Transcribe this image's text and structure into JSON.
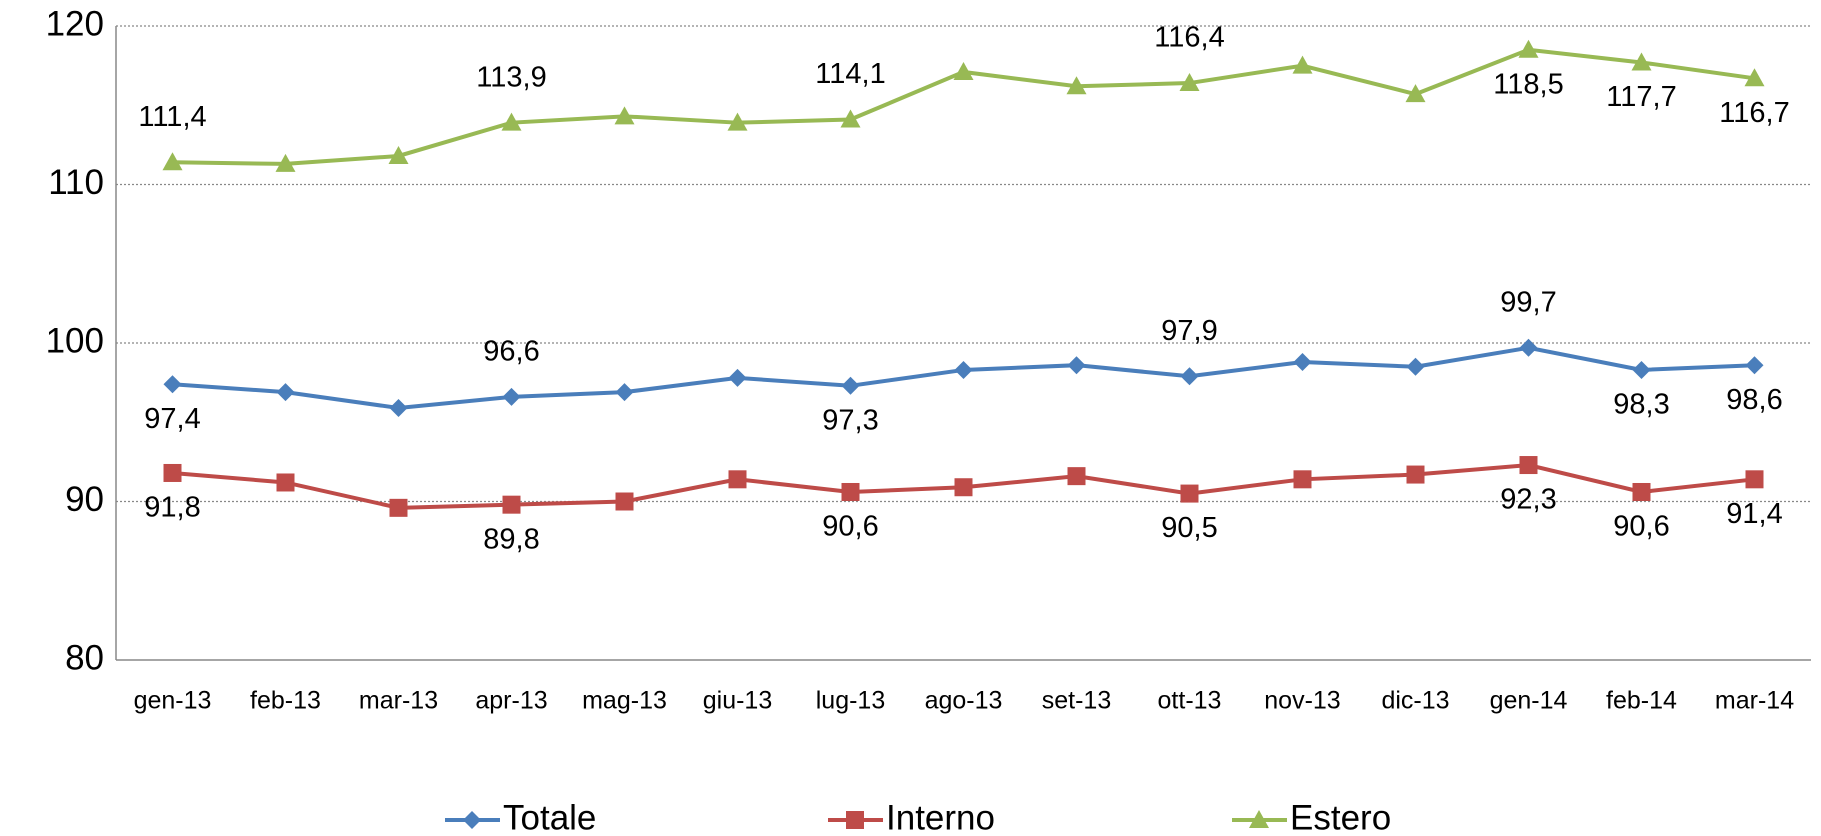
{
  "chart_data": {
    "type": "line",
    "categories": [
      "gen-13",
      "feb-13",
      "mar-13",
      "apr-13",
      "mag-13",
      "giu-13",
      "lug-13",
      "ago-13",
      "set-13",
      "ott-13",
      "nov-13",
      "dic-13",
      "gen-14",
      "feb-14",
      "mar-14"
    ],
    "series": [
      {
        "name": "Totale",
        "color": "#4a7ebb",
        "marker": "diamond",
        "values": [
          97.4,
          96.9,
          95.9,
          96.6,
          96.9,
          97.8,
          97.3,
          98.3,
          98.6,
          97.9,
          98.8,
          98.5,
          99.7,
          98.3,
          98.6
        ],
        "value_labels": [
          "97,4",
          null,
          null,
          "96,6",
          null,
          null,
          "97,3",
          null,
          null,
          "97,9",
          null,
          null,
          "99,7",
          "98,3",
          "98,6"
        ]
      },
      {
        "name": "Interno",
        "color": "#be4b48",
        "marker": "square",
        "values": [
          91.8,
          91.2,
          89.6,
          89.8,
          90.0,
          91.4,
          90.6,
          90.9,
          91.6,
          90.5,
          91.4,
          91.7,
          92.3,
          90.6,
          91.4
        ],
        "value_labels": [
          "91,8",
          null,
          null,
          "89,8",
          null,
          null,
          "90,6",
          null,
          null,
          "90,5",
          null,
          null,
          "92,3",
          "90,6",
          "91,4"
        ]
      },
      {
        "name": "Estero",
        "color": "#98b954",
        "marker": "triangle",
        "values": [
          111.4,
          111.3,
          111.8,
          113.9,
          114.3,
          113.9,
          114.1,
          117.1,
          116.2,
          116.4,
          117.5,
          115.7,
          118.5,
          117.7,
          116.7
        ],
        "value_labels": [
          "111,4",
          null,
          null,
          "113,9",
          null,
          null,
          "114,1",
          null,
          null,
          "116,4",
          null,
          null,
          "118,5",
          "117,7",
          "116,7"
        ]
      }
    ],
    "ylim": [
      80,
      120
    ],
    "yticks": [
      80,
      90,
      100,
      110,
      120
    ],
    "grid": true,
    "legend": "bottom"
  }
}
